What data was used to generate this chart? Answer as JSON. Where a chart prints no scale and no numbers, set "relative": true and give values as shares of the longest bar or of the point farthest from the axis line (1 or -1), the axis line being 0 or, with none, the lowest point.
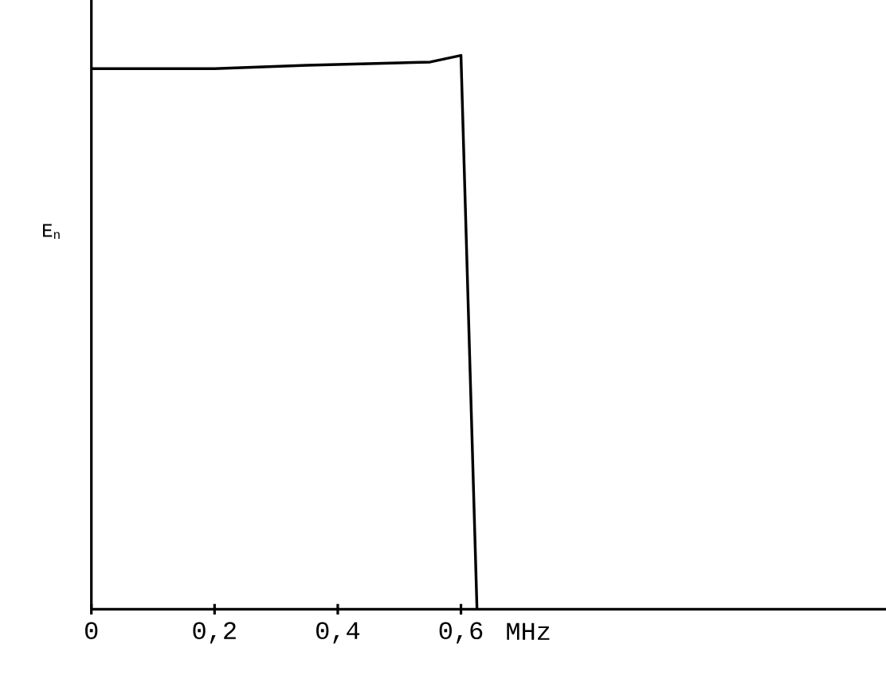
{
  "chart_data": {
    "type": "line",
    "relative": true,
    "xlabel": "MHz",
    "ylabel": "E$_{n}$",
    "color": "#000000",
    "marker": "none",
    "line_style": "solid",
    "grid": false,
    "x": [
      0,
      0.2,
      0.35,
      0.45,
      0.55,
      0.6,
      0.626
    ],
    "values": [
      0.976,
      0.976,
      0.982,
      0.985,
      0.988,
      1,
      0
    ],
    "xlim": [
      0,
      1.29
    ],
    "xticks": [
      0,
      {
        "value": 0.2,
        "label": "0,2"
      },
      {
        "value": 0.4,
        "label": "0,4"
      },
      {
        "value": 0.6,
        "label": "0,6"
      }
    ]
  }
}
